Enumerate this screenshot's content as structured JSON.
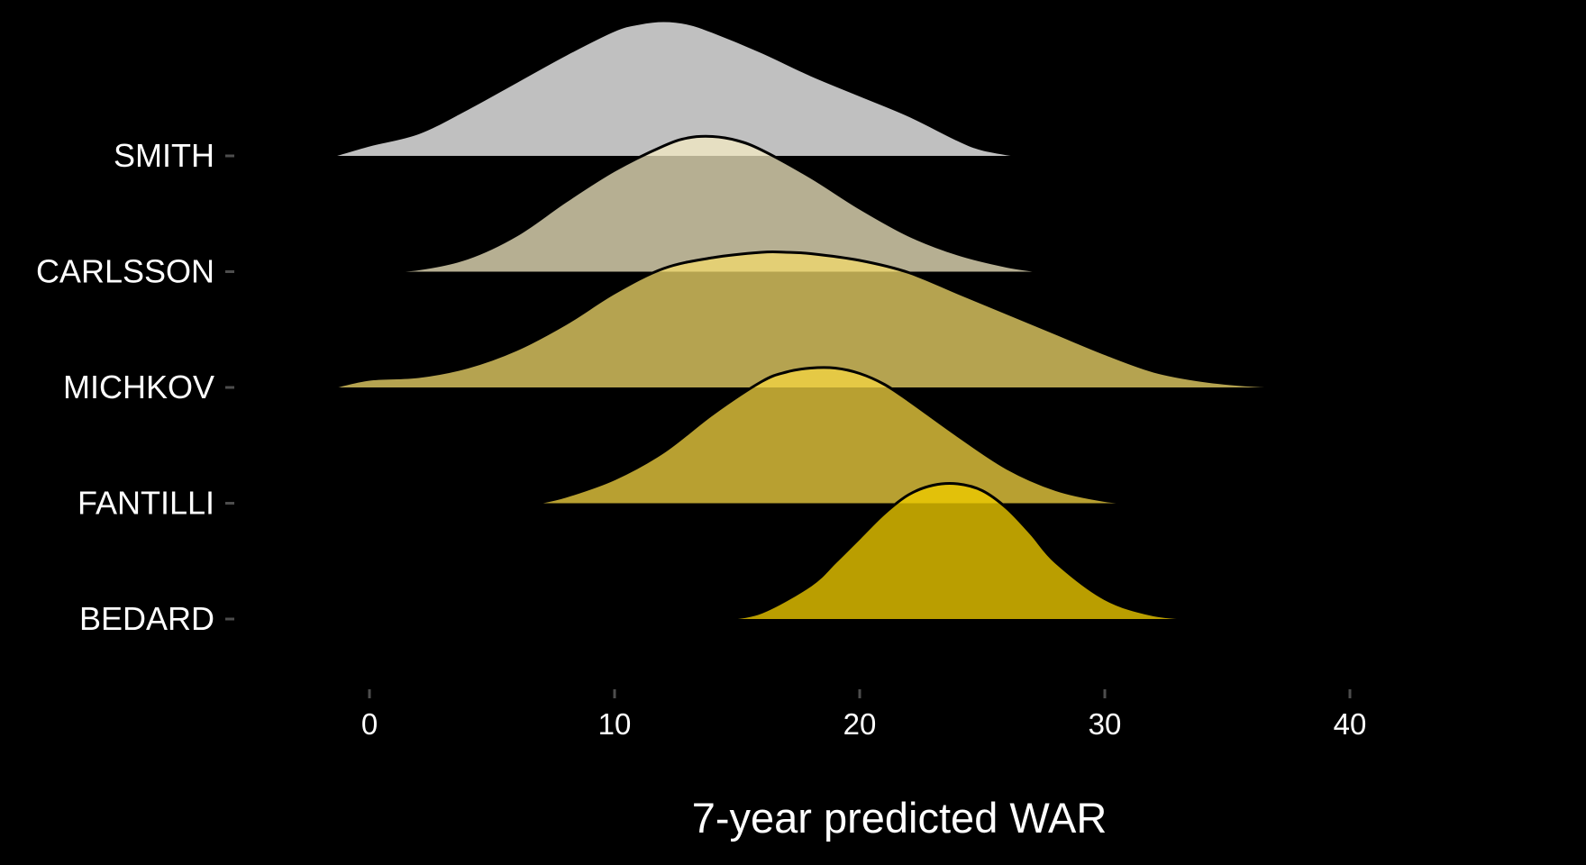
{
  "chart_data": {
    "type": "ridgeline",
    "title": "",
    "xlabel": "7-year predicted WAR",
    "ylabel": "",
    "xlim": [
      -1.5,
      48
    ],
    "xticks": [
      0,
      10,
      20,
      30,
      40
    ],
    "grid": false,
    "legend": "none",
    "background": "#000000",
    "series": [
      {
        "name": "SMITH",
        "color": "#c0c0c0",
        "alpha": 1.0,
        "x": [
          -1.5,
          0,
          2,
          4,
          6,
          8,
          10,
          11,
          12,
          13,
          14,
          16,
          18,
          20,
          22,
          24,
          25,
          26.5
        ],
        "density": [
          0,
          0.08,
          0.17,
          0.35,
          0.55,
          0.75,
          0.93,
          0.98,
          1.0,
          0.98,
          0.92,
          0.77,
          0.6,
          0.45,
          0.3,
          0.12,
          0.05,
          0
        ]
      },
      {
        "name": "CARLSSON",
        "color": "#f3eac3",
        "alpha": 0.75,
        "x": [
          0.2,
          2,
          4,
          6,
          8,
          10,
          12,
          13,
          14,
          15,
          16,
          18,
          20,
          22,
          24,
          26,
          27.5
        ],
        "density": [
          0,
          0.02,
          0.1,
          0.27,
          0.52,
          0.75,
          0.93,
          0.99,
          1.0,
          0.97,
          0.9,
          0.7,
          0.47,
          0.27,
          0.13,
          0.04,
          0
        ]
      },
      {
        "name": "MICHKOV",
        "color": "#f2d96b",
        "alpha": 0.75,
        "x": [
          -1.5,
          0,
          2,
          4,
          6,
          8,
          10,
          12,
          14,
          16,
          17,
          18,
          20,
          22,
          24,
          26,
          28,
          30,
          32,
          34,
          36,
          38.2
        ],
        "density": [
          0,
          0.06,
          0.08,
          0.15,
          0.28,
          0.47,
          0.7,
          0.88,
          0.96,
          1.0,
          1.0,
          0.99,
          0.94,
          0.85,
          0.7,
          0.55,
          0.4,
          0.25,
          0.12,
          0.05,
          0.015,
          0
        ]
      },
      {
        "name": "FANTILLI",
        "color": "#f5d641",
        "alpha": 0.75,
        "x": [
          6.8,
          8,
          10,
          12,
          14,
          16,
          17,
          18,
          19,
          20,
          21,
          22,
          24,
          26,
          28,
          30,
          31.5
        ],
        "density": [
          0,
          0.05,
          0.18,
          0.38,
          0.66,
          0.9,
          0.97,
          1.0,
          1.0,
          0.96,
          0.88,
          0.76,
          0.5,
          0.26,
          0.1,
          0.02,
          0
        ]
      },
      {
        "name": "BEDARD",
        "color": "#eecb00",
        "alpha": 0.78,
        "x": [
          14.5,
          16,
          18,
          19,
          20,
          21,
          22,
          23,
          24,
          25,
          26,
          27,
          28,
          30,
          32,
          34
        ],
        "density": [
          0,
          0.05,
          0.25,
          0.42,
          0.6,
          0.78,
          0.92,
          0.99,
          1.0,
          0.95,
          0.82,
          0.63,
          0.42,
          0.15,
          0.03,
          0
        ]
      }
    ]
  }
}
